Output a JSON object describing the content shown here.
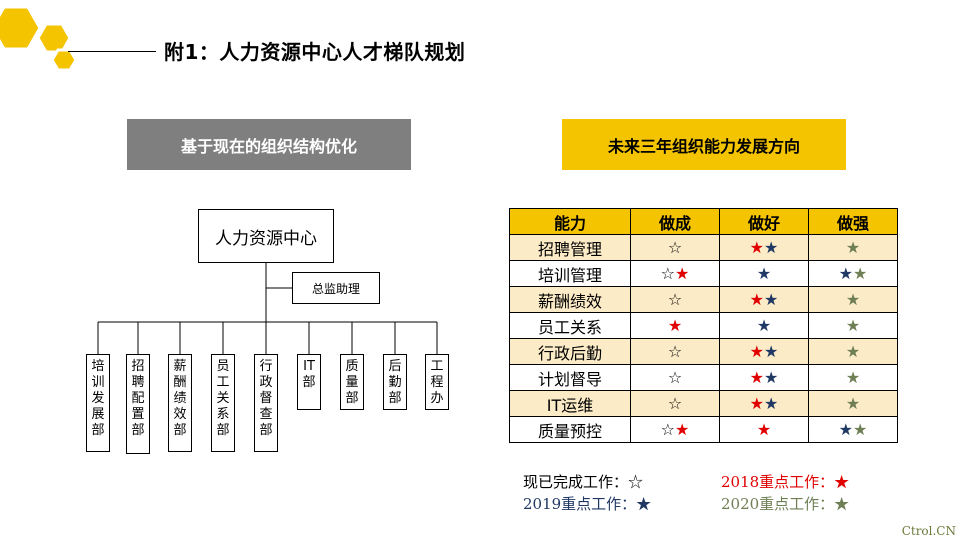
{
  "slide": {
    "title": "附1：人力资源中心人才梯队规划"
  },
  "banners": {
    "left": "基于现在的组织结构优化",
    "right": "未来三年组织能力发展方向"
  },
  "org_chart": {
    "root": "人力资源中心",
    "assistant": "总监助理",
    "departments": [
      "培训发展部",
      "招聘配置部",
      "薪酬绩效部",
      "员工关系部",
      "行政督查部",
      "IT部",
      "质量部",
      "后勤部",
      "工程办"
    ]
  },
  "capability_table": {
    "headers": [
      "能力",
      "做成",
      "做好",
      "做强"
    ],
    "rows": [
      {
        "name": "招聘管理",
        "cells": [
          [
            "☆"
          ],
          [
            "★r",
            "★b"
          ],
          [
            "★g"
          ]
        ]
      },
      {
        "name": "培训管理",
        "cells": [
          [
            "☆",
            "★r"
          ],
          [
            "★b"
          ],
          [
            "★b",
            "★g"
          ]
        ]
      },
      {
        "name": "薪酬绩效",
        "cells": [
          [
            "☆"
          ],
          [
            "★r",
            "★b"
          ],
          [
            "★g"
          ]
        ]
      },
      {
        "name": "员工关系",
        "cells": [
          [
            "★r"
          ],
          [
            "★b"
          ],
          [
            "★g"
          ]
        ]
      },
      {
        "name": "行政后勤",
        "cells": [
          [
            "☆"
          ],
          [
            "★r",
            "★b"
          ],
          [
            "★g"
          ]
        ]
      },
      {
        "name": "计划督导",
        "cells": [
          [
            "☆"
          ],
          [
            "★r",
            "★b"
          ],
          [
            "★g"
          ]
        ]
      },
      {
        "name": "IT运维",
        "cells": [
          [
            "☆"
          ],
          [
            "★r",
            "★b"
          ],
          [
            "★g"
          ]
        ]
      },
      {
        "name": "质量预控",
        "cells": [
          [
            "☆",
            "★r"
          ],
          [
            "★r"
          ],
          [
            "★b",
            "★g"
          ]
        ]
      }
    ]
  },
  "legend": {
    "done": "现已完成工作：☆",
    "y2018": "2018重点工作：★",
    "y2019": "2019重点工作：★",
    "y2020": "2020重点工作：★"
  },
  "colors": {
    "accent_yellow": "#f5c400",
    "banner_gray": "#7f7f7f",
    "row_tint": "#fcebc7",
    "star_2018": "#e00000",
    "star_2019": "#1f3864",
    "star_2020": "#6f7f55"
  },
  "watermark": "Ctrol.CN"
}
